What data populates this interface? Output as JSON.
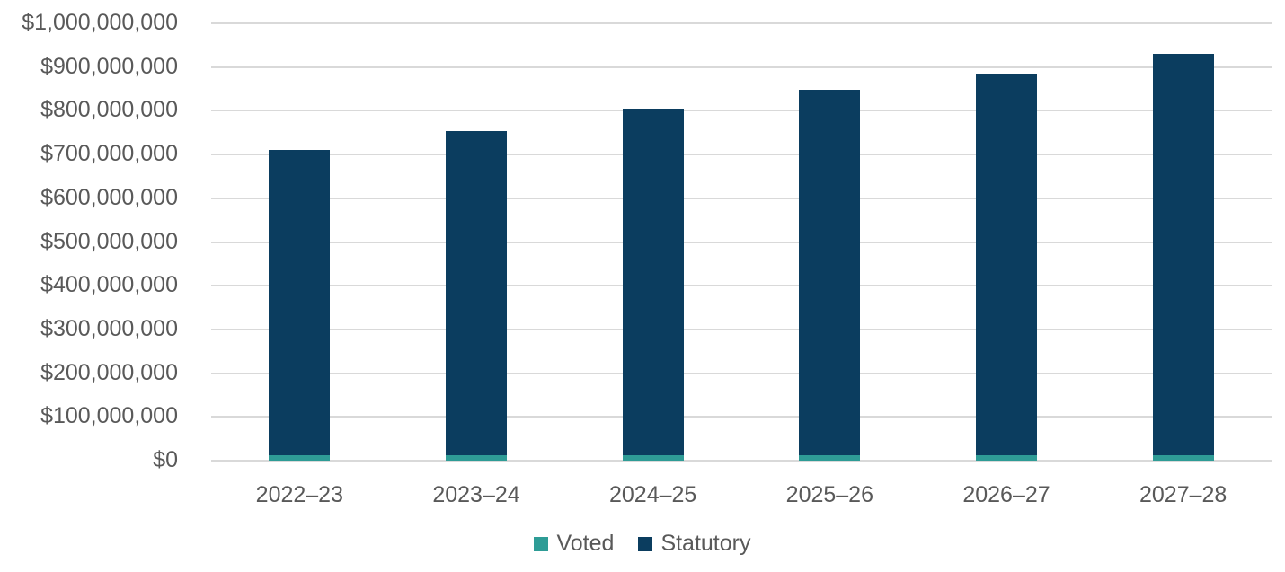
{
  "chart_data": {
    "type": "bar",
    "stacked": true,
    "title": "",
    "xlabel": "",
    "ylabel": "",
    "categories": [
      "2022–23",
      "2023–24",
      "2024–25",
      "2025–26",
      "2026–27",
      "2027–28"
    ],
    "series": [
      {
        "name": "Voted",
        "color": "#2e9c96",
        "values": [
          13000000,
          13000000,
          13000000,
          13000000,
          13000000,
          13000000
        ]
      },
      {
        "name": "Statutory",
        "color": "#0b3d5f",
        "values": [
          697000000,
          740000000,
          792000000,
          835000000,
          873000000,
          918000000
        ]
      }
    ],
    "totals": [
      710000000,
      753000000,
      805000000,
      848000000,
      886000000,
      931000000
    ],
    "ylim": [
      0,
      1000000000
    ],
    "ytick_interval": 100000000,
    "ytick_labels": [
      "$0",
      "$100,000,000",
      "$200,000,000",
      "$300,000,000",
      "$400,000,000",
      "$500,000,000",
      "$600,000,000",
      "$700,000,000",
      "$800,000,000",
      "$900,000,000",
      "$1,000,000,000"
    ],
    "grid": true,
    "legend_position": "bottom",
    "colors": {
      "voted": "#2e9c96",
      "statutory": "#0b3d5f",
      "gridline": "#d9d9d9",
      "axis_text": "#595959",
      "background": "#ffffff"
    }
  }
}
